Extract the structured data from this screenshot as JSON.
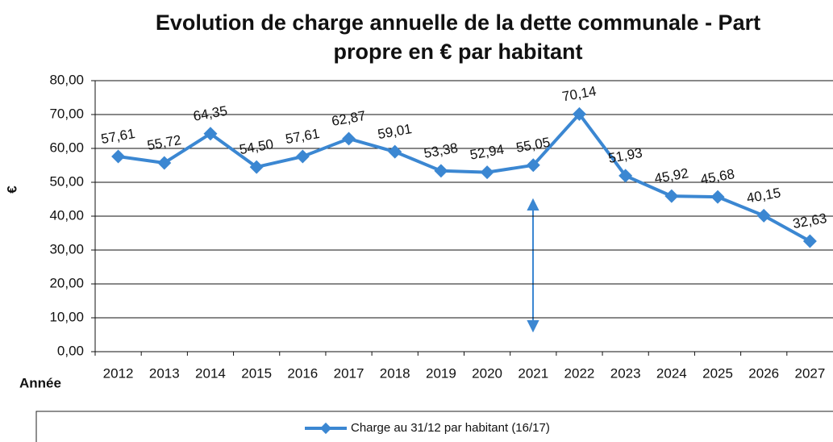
{
  "chart_data": {
    "type": "line",
    "title": [
      "Evolution de charge annuelle de la dette communale - Part",
      "propre en € par habitant"
    ],
    "y_label": "€",
    "x_label": "Année",
    "categories": [
      "2012",
      "2013",
      "2014",
      "2015",
      "2016",
      "2017",
      "2018",
      "2019",
      "2020",
      "2021",
      "2022",
      "2023",
      "2024",
      "2025",
      "2026",
      "2027"
    ],
    "series": [
      {
        "name": "Charge au 31/12 par habitant (16/17)",
        "color": "#3b87d2",
        "values": [
          57.61,
          55.72,
          64.35,
          54.5,
          57.61,
          62.87,
          59.01,
          53.38,
          52.94,
          55.05,
          70.14,
          51.93,
          45.92,
          45.68,
          40.15,
          32.63
        ],
        "value_labels": [
          "57,61",
          "55,72",
          "64,35",
          "54,50",
          "57,61",
          "62,87",
          "59,01",
          "53,38",
          "52,94",
          "55,05",
          "70,14",
          "51,93",
          "45,92",
          "45,68",
          "40,15",
          "32,63"
        ]
      }
    ],
    "ylim": [
      0,
      80
    ],
    "yticks": [
      {
        "value": 0,
        "label": "0,00"
      },
      {
        "value": 10,
        "label": "10,00"
      },
      {
        "value": 20,
        "label": "20,00"
      },
      {
        "value": 30,
        "label": "30,00"
      },
      {
        "value": 40,
        "label": "40,00"
      },
      {
        "value": 50,
        "label": "50,00"
      },
      {
        "value": 60,
        "label": "60,00"
      },
      {
        "value": 70,
        "label": "70,00"
      },
      {
        "value": 80,
        "label": "80,00"
      }
    ],
    "grid": true,
    "legend": "bottom"
  }
}
